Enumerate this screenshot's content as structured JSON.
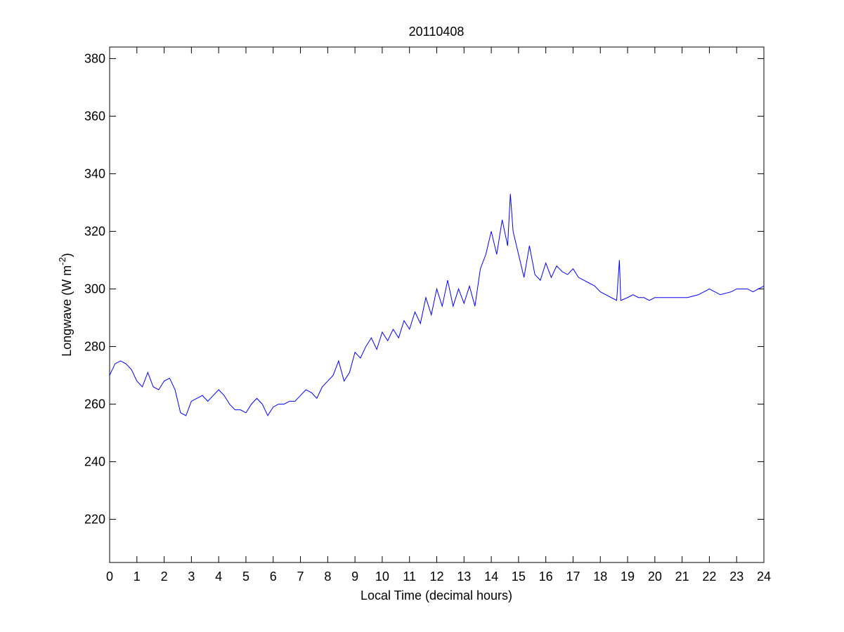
{
  "chart_data": {
    "type": "line",
    "title": "20110408",
    "xlabel": "Local Time (decimal hours)",
    "ylabel": [
      "Longwave (W m",
      "-2",
      ")"
    ],
    "x": [
      0,
      0.2,
      0.4,
      0.6,
      0.8,
      1.0,
      1.2,
      1.4,
      1.6,
      1.8,
      2.0,
      2.2,
      2.4,
      2.6,
      2.8,
      3.0,
      3.2,
      3.4,
      3.6,
      3.8,
      4.0,
      4.2,
      4.4,
      4.6,
      4.8,
      5.0,
      5.2,
      5.4,
      5.6,
      5.8,
      6.0,
      6.2,
      6.4,
      6.6,
      6.8,
      7.0,
      7.2,
      7.4,
      7.6,
      7.8,
      8.0,
      8.2,
      8.4,
      8.6,
      8.8,
      9.0,
      9.2,
      9.4,
      9.6,
      9.8,
      10.0,
      10.2,
      10.4,
      10.6,
      10.8,
      11.0,
      11.2,
      11.4,
      11.6,
      11.8,
      12.0,
      12.2,
      12.4,
      12.6,
      12.8,
      13.0,
      13.2,
      13.4,
      13.6,
      13.8,
      14.0,
      14.2,
      14.4,
      14.6,
      14.7,
      14.8,
      15.0,
      15.2,
      15.4,
      15.6,
      15.8,
      16.0,
      16.2,
      16.4,
      16.6,
      16.8,
      17.0,
      17.2,
      17.4,
      17.6,
      17.8,
      18.0,
      18.2,
      18.4,
      18.6,
      18.7,
      18.75,
      19.0,
      19.2,
      19.4,
      19.6,
      19.8,
      20.0,
      20.4,
      20.8,
      21.2,
      21.6,
      22.0,
      22.4,
      22.8,
      23.0,
      23.4,
      23.6,
      23.8,
      24.0
    ],
    "series": [
      {
        "name": "Longwave",
        "color": "#0000ff",
        "values": [
          270,
          274,
          275,
          274,
          272,
          268,
          266,
          271,
          266,
          265,
          268,
          269,
          265,
          257,
          256,
          261,
          262,
          263,
          261,
          263,
          265,
          263,
          260,
          258,
          258,
          257,
          260,
          262,
          260,
          256,
          259,
          260,
          260,
          261,
          261,
          263,
          265,
          264,
          262,
          266,
          268,
          270,
          275,
          268,
          271,
          278,
          276,
          280,
          283,
          279,
          285,
          282,
          286,
          283,
          289,
          286,
          292,
          288,
          297,
          291,
          300,
          294,
          303,
          294,
          300,
          295,
          301,
          294,
          307,
          312,
          320,
          312,
          324,
          315,
          333,
          320,
          312,
          304,
          315,
          305,
          303,
          309,
          304,
          308,
          306,
          305,
          307,
          304,
          303,
          302,
          301,
          299,
          298,
          297,
          296,
          310,
          296,
          297,
          298,
          297,
          297,
          296,
          297,
          297,
          297,
          297,
          298,
          300,
          298,
          299,
          300,
          300,
          299,
          300,
          301
        ]
      }
    ],
    "xlim": [
      0,
      24
    ],
    "ylim": [
      205,
      384
    ],
    "xticks": [
      0,
      1,
      2,
      3,
      4,
      5,
      6,
      7,
      8,
      9,
      10,
      11,
      12,
      13,
      14,
      15,
      16,
      17,
      18,
      19,
      20,
      21,
      22,
      23,
      24
    ],
    "yticks": [
      220,
      240,
      260,
      280,
      300,
      320,
      340,
      360,
      380
    ]
  }
}
